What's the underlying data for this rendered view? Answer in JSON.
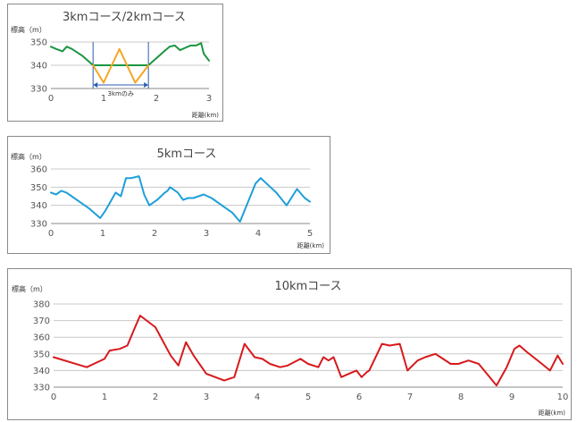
{
  "chart_data": [
    {
      "type": "line",
      "title": "3kmコース/2kmコース",
      "ylabel": "標高（m）",
      "xlabel": "距離(km)",
      "xlim": [
        0,
        3
      ],
      "ylim": [
        330,
        350
      ],
      "xticks": [
        "0",
        "1",
        "2",
        "3"
      ],
      "yticks": [
        "330",
        "340",
        "350"
      ],
      "grid": "horizontal",
      "colors": [
        "#1a9641",
        "#f5a623"
      ],
      "annotation": "3kmのみ",
      "annotation_range": [
        0.8,
        1.85
      ],
      "series": [
        {
          "x": [
            0,
            0.1,
            0.22,
            0.3,
            0.4,
            0.5,
            0.6,
            0.7,
            0.8,
            1.85,
            1.95,
            2.05,
            2.15,
            2.25,
            2.35,
            2.45,
            2.55,
            2.65,
            2.75,
            2.85,
            2.9,
            3.0
          ],
          "y": [
            348,
            347,
            346,
            348,
            347,
            345.5,
            344,
            342,
            340,
            340,
            342,
            344,
            346,
            348,
            348.5,
            346.5,
            347.5,
            348.5,
            348.5,
            349.5,
            345,
            342
          ]
        },
        {
          "x": [
            0.8,
            1.0,
            1.3,
            1.6,
            1.85
          ],
          "y": [
            340,
            332.5,
            347,
            332.5,
            340
          ]
        }
      ]
    },
    {
      "type": "line",
      "title": "5kmコース",
      "ylabel": "標高（m）",
      "xlabel": "距離(km)",
      "xlim": [
        0,
        5
      ],
      "ylim": [
        330,
        360
      ],
      "xticks": [
        "0",
        "1",
        "2",
        "3",
        "4",
        "5"
      ],
      "yticks": [
        "330",
        "340",
        "350",
        "360"
      ],
      "grid": "horizontal",
      "colors": [
        "#1e9fd8"
      ],
      "series": [
        {
          "x": [
            0,
            0.1,
            0.2,
            0.3,
            0.4,
            0.55,
            0.75,
            0.95,
            1.05,
            1.15,
            1.25,
            1.35,
            1.45,
            1.55,
            1.7,
            1.8,
            1.9,
            2.05,
            2.2,
            2.25,
            2.3,
            2.45,
            2.55,
            2.65,
            2.75,
            2.95,
            3.1,
            3.3,
            3.5,
            3.65,
            3.95,
            4.05,
            4.2,
            4.35,
            4.55,
            4.75,
            4.9,
            5.0
          ],
          "y": [
            347,
            346,
            348,
            347,
            345,
            342,
            338,
            333,
            337,
            342,
            347,
            345,
            355,
            355,
            356,
            346,
            340,
            343,
            347,
            348,
            350,
            347,
            343,
            344,
            344,
            346,
            344,
            340,
            336,
            331,
            352,
            355,
            351,
            347,
            340,
            349,
            344,
            342
          ]
        }
      ]
    },
    {
      "type": "line",
      "title": "10kmコース",
      "ylabel": "標高（m）",
      "xlabel": "距離(km)",
      "xlim": [
        0,
        10
      ],
      "ylim": [
        330,
        380
      ],
      "xticks": [
        "0",
        "1",
        "2",
        "3",
        "4",
        "5",
        "6",
        "7",
        "8",
        "9",
        "10"
      ],
      "yticks": [
        "330",
        "340",
        "350",
        "360",
        "370",
        "380"
      ],
      "grid": "horizontal",
      "colors": [
        "#d7191c"
      ],
      "series": [
        {
          "x": [
            0,
            0.65,
            1.0,
            1.1,
            1.3,
            1.45,
            1.6,
            1.7,
            2.0,
            2.3,
            2.45,
            2.6,
            2.75,
            3.0,
            3.35,
            3.55,
            3.75,
            3.95,
            4.1,
            4.25,
            4.45,
            4.6,
            4.85,
            5.0,
            5.2,
            5.3,
            5.4,
            5.5,
            5.65,
            5.8,
            5.95,
            6.05,
            6.15,
            6.2,
            6.45,
            6.6,
            6.8,
            6.95,
            7.15,
            7.3,
            7.5,
            7.6,
            7.8,
            7.95,
            8.15,
            8.35,
            8.7,
            8.9,
            9.05,
            9.15,
            9.3,
            9.55,
            9.75,
            9.9,
            10.0
          ],
          "y": [
            348,
            342,
            347,
            352,
            353,
            355,
            366,
            373,
            366,
            349,
            343,
            357,
            349,
            338,
            334,
            336,
            356,
            348,
            347,
            344,
            342,
            343,
            347,
            344,
            342,
            348,
            346,
            348,
            336,
            338,
            340,
            336,
            339,
            340,
            356,
            355,
            356,
            340,
            346,
            348,
            350,
            348,
            344,
            344,
            346,
            344,
            331,
            342,
            353,
            355,
            351,
            345,
            340,
            349,
            344
          ]
        }
      ]
    }
  ]
}
